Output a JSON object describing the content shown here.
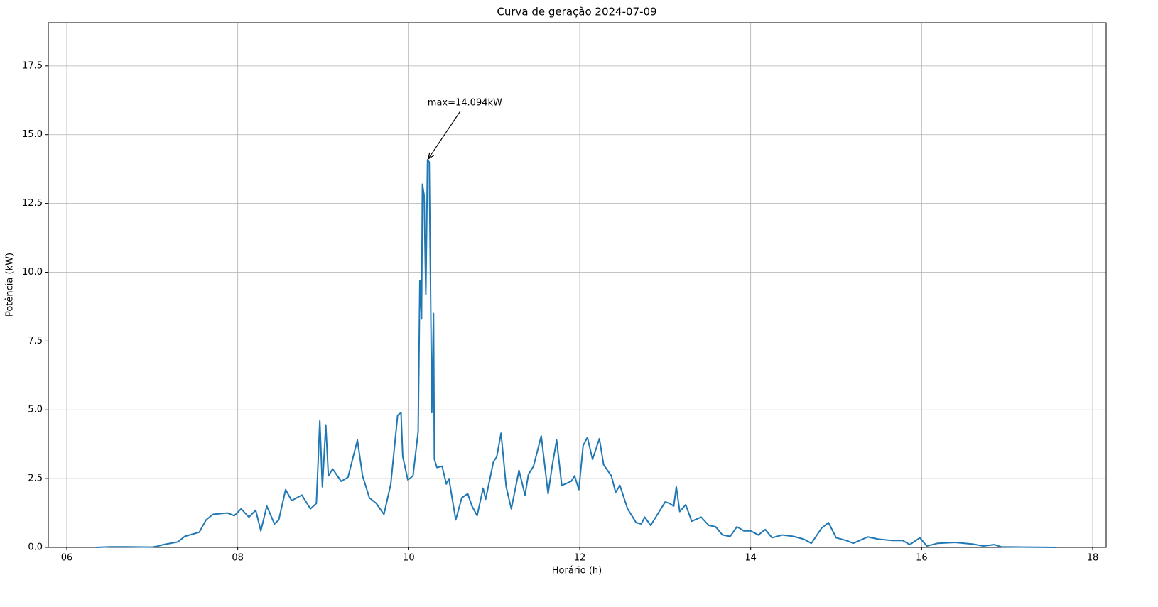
{
  "chart_data": {
    "type": "line",
    "title": "Curva de geração 2024-07-09",
    "xlabel": "Horário (h)",
    "ylabel": "Potência (kW)",
    "annotation": "max=14.094kW",
    "color": "#1f77b4",
    "grid": true,
    "xlim": [
      5.784,
      18.158
    ],
    "ylim": [
      0,
      19.07
    ],
    "xticks": [
      {
        "value": 6,
        "label": "06"
      },
      {
        "value": 8,
        "label": "08"
      },
      10,
      12,
      14,
      16,
      18
    ],
    "yticks": [
      {
        "value": 0,
        "label": "0.0"
      },
      2.5,
      {
        "value": 5,
        "label": "5.0"
      },
      7.5,
      {
        "value": 10,
        "label": "10.0"
      },
      12.5,
      {
        "value": 15,
        "label": "15.0"
      },
      17.5
    ],
    "x": [
      6.34,
      6.5,
      6.7,
      7.0,
      7.07,
      7.13,
      7.3,
      7.38,
      7.55,
      7.63,
      7.71,
      7.88,
      7.96,
      8.04,
      8.13,
      8.21,
      8.27,
      8.34,
      8.43,
      8.48,
      8.56,
      8.63,
      8.75,
      8.85,
      8.92,
      8.96,
      8.99,
      9.03,
      9.06,
      9.11,
      9.21,
      9.29,
      9.4,
      9.46,
      9.54,
      9.62,
      9.71,
      9.79,
      9.87,
      9.91,
      9.93,
      9.99,
      10.05,
      10.11,
      10.13,
      10.15,
      10.16,
      10.18,
      10.2,
      10.22,
      10.24,
      10.26,
      10.27,
      10.29,
      10.3,
      10.33,
      10.39,
      10.44,
      10.47,
      10.55,
      10.62,
      10.69,
      10.74,
      10.8,
      10.87,
      10.9,
      10.99,
      11.03,
      11.08,
      11.14,
      11.2,
      11.29,
      11.36,
      11.4,
      11.46,
      11.55,
      11.63,
      11.68,
      11.73,
      11.79,
      11.9,
      11.94,
      11.99,
      12.04,
      12.09,
      12.15,
      12.23,
      12.28,
      12.37,
      12.42,
      12.47,
      12.56,
      12.66,
      12.72,
      12.76,
      12.83,
      12.93,
      13.0,
      13.05,
      13.1,
      13.13,
      13.17,
      13.24,
      13.31,
      13.42,
      13.51,
      13.59,
      13.67,
      13.76,
      13.84,
      13.92,
      14.0,
      14.09,
      14.17,
      14.25,
      14.37,
      14.5,
      14.62,
      14.71,
      14.83,
      14.91,
      15.0,
      15.12,
      15.2,
      15.37,
      15.49,
      15.66,
      15.78,
      15.86,
      15.98,
      16.06,
      16.19,
      16.39,
      16.6,
      16.72,
      16.85,
      16.93,
      17.58
    ],
    "values": [
      0,
      0.02,
      0.02,
      0.01,
      0.05,
      0.1,
      0.2,
      0.4,
      0.55,
      1.0,
      1.2,
      1.25,
      1.15,
      1.4,
      1.1,
      1.35,
      0.6,
      1.5,
      0.85,
      1.0,
      2.1,
      1.7,
      1.9,
      1.4,
      1.6,
      4.6,
      2.2,
      4.45,
      2.6,
      2.85,
      2.4,
      2.55,
      3.9,
      2.6,
      1.8,
      1.6,
      1.2,
      2.3,
      4.8,
      4.9,
      3.3,
      2.45,
      2.6,
      4.2,
      9.7,
      8.3,
      13.2,
      12.8,
      9.2,
      14.094,
      14.0,
      8.0,
      4.9,
      8.5,
      3.2,
      2.9,
      2.95,
      2.3,
      2.5,
      1.0,
      1.8,
      1.95,
      1.5,
      1.15,
      2.15,
      1.75,
      3.1,
      3.3,
      4.15,
      2.2,
      1.4,
      2.8,
      1.9,
      2.65,
      2.95,
      4.05,
      1.95,
      3.0,
      3.9,
      2.25,
      2.4,
      2.6,
      2.1,
      3.7,
      4.0,
      3.2,
      3.95,
      3.0,
      2.6,
      2.0,
      2.25,
      1.4,
      0.9,
      0.85,
      1.1,
      0.8,
      1.3,
      1.65,
      1.6,
      1.5,
      2.2,
      1.3,
      1.55,
      0.95,
      1.1,
      0.8,
      0.75,
      0.45,
      0.4,
      0.75,
      0.6,
      0.6,
      0.45,
      0.65,
      0.35,
      0.45,
      0.4,
      0.3,
      0.15,
      0.7,
      0.9,
      0.35,
      0.25,
      0.15,
      0.38,
      0.3,
      0.25,
      0.25,
      0.1,
      0.35,
      0.05,
      0.15,
      0.18,
      0.12,
      0.05,
      0.1,
      0.02,
      0
    ]
  }
}
